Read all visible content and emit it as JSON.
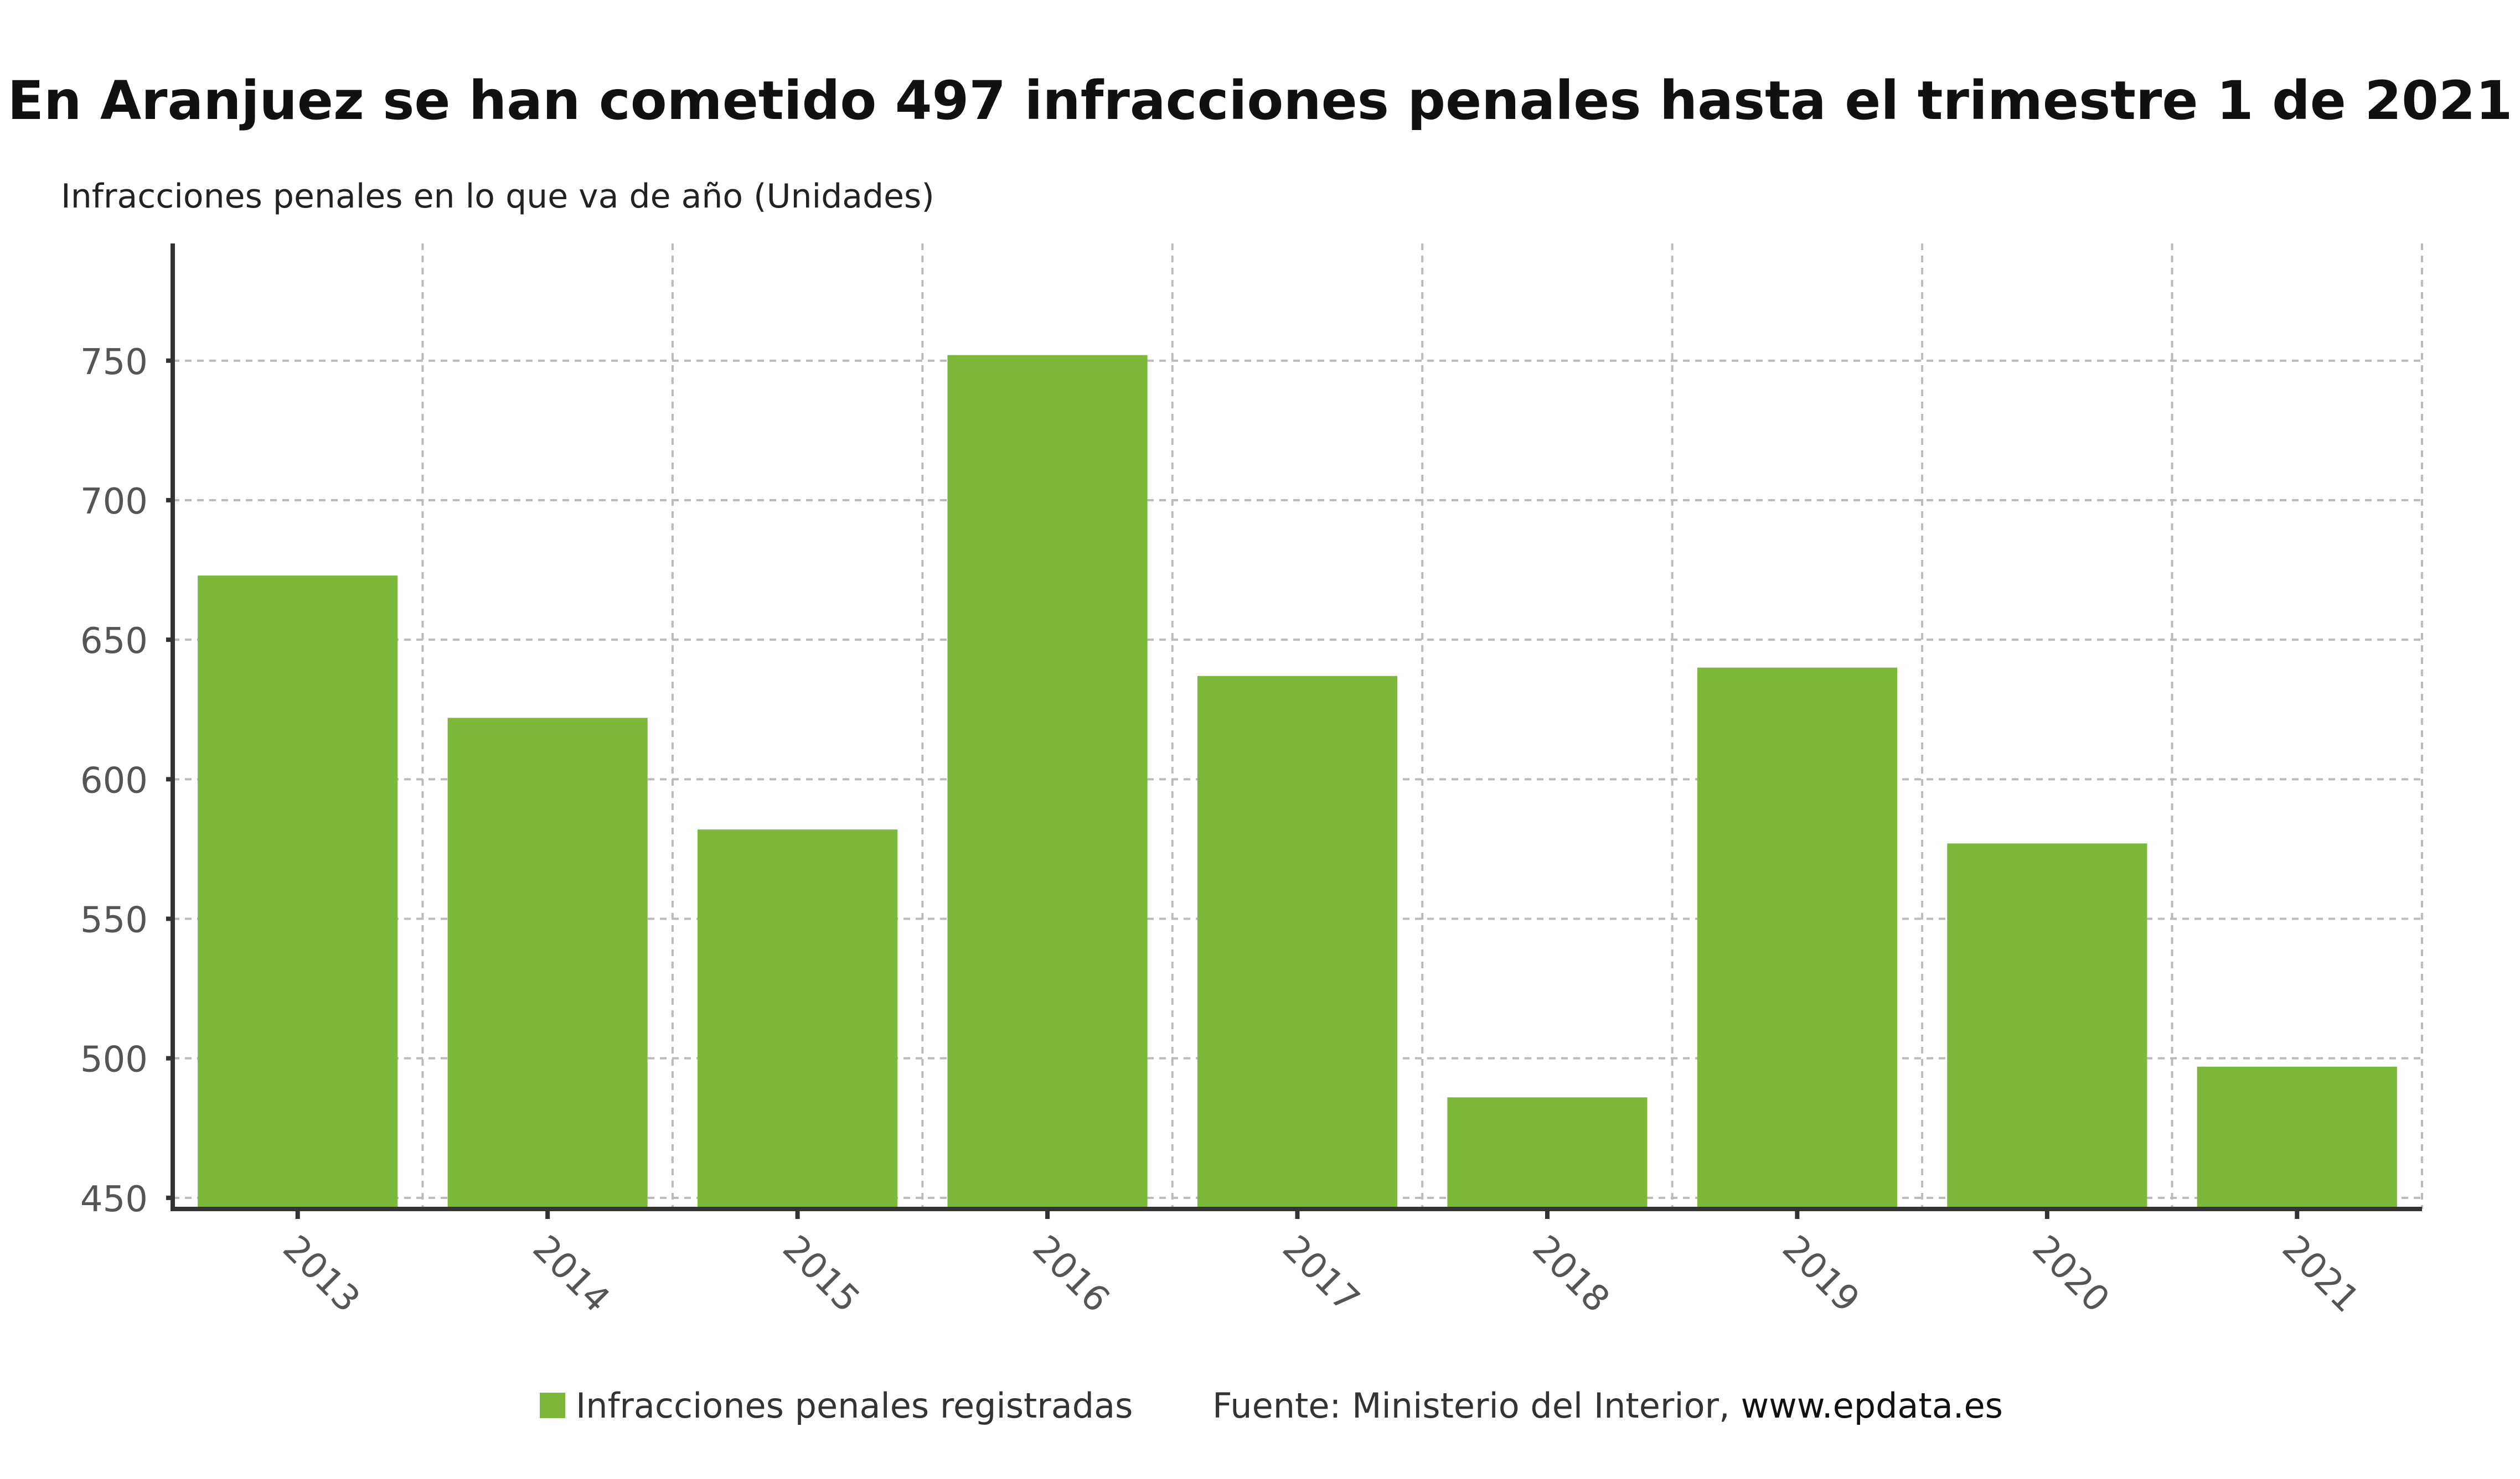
{
  "chart_data": {
    "type": "bar",
    "title": "En Aranjuez se han cometido 497 infracciones penales hasta el trimestre 1 de 2021",
    "subtitle": "Infracciones penales en lo que va de año (Unidades)",
    "xlabel": "",
    "ylabel": "",
    "categories": [
      "2013",
      "2014",
      "2015",
      "2016",
      "2017",
      "2018",
      "2019",
      "2020",
      "2021"
    ],
    "series": [
      {
        "name": "Infracciones penales registradas",
        "color": "#7cb93a",
        "values": [
          673,
          622,
          582,
          752,
          637,
          486,
          640,
          577,
          497
        ]
      }
    ],
    "ylim": [
      446,
      792
    ],
    "yticks": [
      450,
      500,
      550,
      600,
      650,
      700,
      750
    ],
    "grid": true,
    "legend_position": "bottom"
  },
  "footer": {
    "source_prefix": "Fuente: Ministerio del Interior, ",
    "source_link": "www.epdata.es"
  }
}
